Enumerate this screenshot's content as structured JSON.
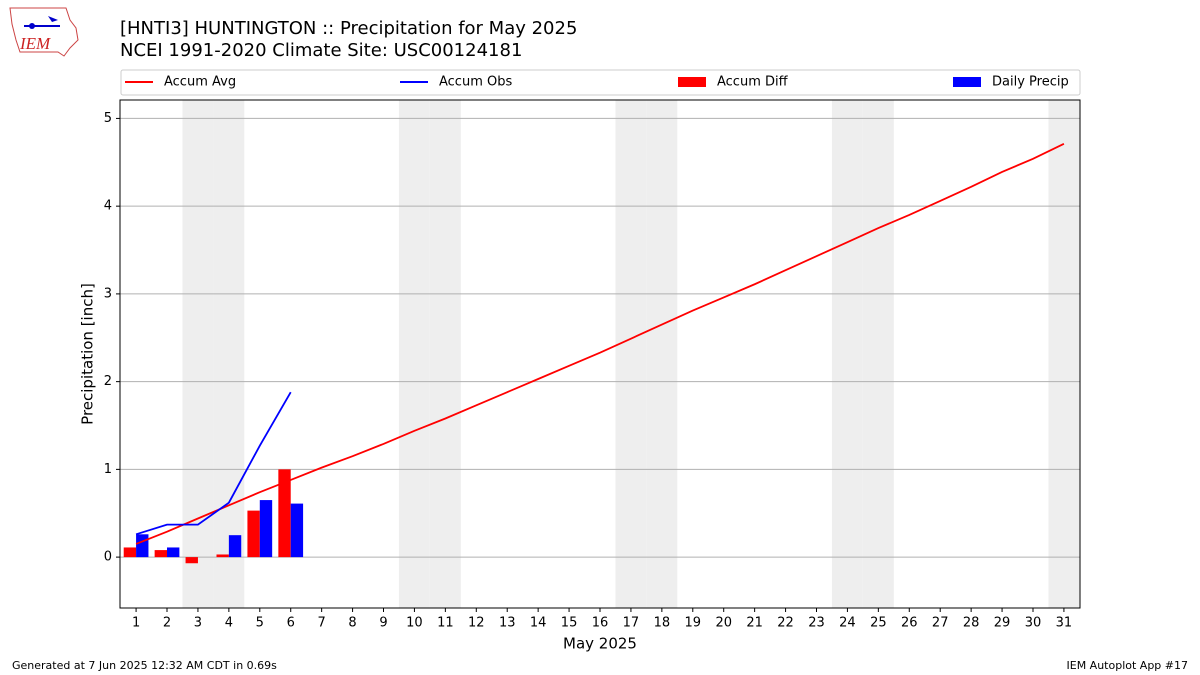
{
  "chart_data": {
    "type": "combo",
    "title": "[HNTI3] HUNTINGTON :: Precipitation for May 2025",
    "subtitle": "NCEI 1991-2020 Climate Site: USC00124181",
    "logo_text": "IEM",
    "x_label": "May 2025",
    "y_label": "Precipitation [inch]",
    "x": [
      1,
      2,
      3,
      4,
      5,
      6,
      7,
      8,
      9,
      10,
      11,
      12,
      13,
      14,
      15,
      16,
      17,
      18,
      19,
      20,
      21,
      22,
      23,
      24,
      25,
      26,
      27,
      28,
      29,
      30,
      31
    ],
    "xlim": [
      0.48,
      31.52
    ],
    "xticks": [
      1,
      2,
      3,
      4,
      5,
      6,
      7,
      8,
      9,
      10,
      11,
      12,
      13,
      14,
      15,
      16,
      17,
      18,
      19,
      20,
      21,
      22,
      23,
      24,
      25,
      26,
      27,
      28,
      29,
      30,
      31
    ],
    "ylim": [
      -0.58,
      5.21
    ],
    "yticks": [
      0,
      1,
      2,
      3,
      4,
      5
    ],
    "grid": true,
    "legend": "top",
    "highlight_days": [
      3,
      4,
      10,
      11,
      17,
      18,
      24,
      25,
      31
    ],
    "series": [
      {
        "name": "Accum Avg",
        "type": "line",
        "color": "#ff0000",
        "values": [
          0.15,
          0.29,
          0.44,
          0.59,
          0.74,
          0.88,
          1.02,
          1.15,
          1.29,
          1.44,
          1.58,
          1.73,
          1.88,
          2.03,
          2.18,
          2.33,
          2.49,
          2.65,
          2.81,
          2.96,
          3.11,
          3.27,
          3.43,
          3.59,
          3.75,
          3.9,
          4.06,
          4.22,
          4.39,
          4.54,
          4.71
        ]
      },
      {
        "name": "Accum Obs",
        "type": "line",
        "color": "#0000ff",
        "values": [
          0.26,
          0.37,
          0.37,
          0.62,
          1.27,
          1.88,
          null,
          null,
          null,
          null,
          null,
          null,
          null,
          null,
          null,
          null,
          null,
          null,
          null,
          null,
          null,
          null,
          null,
          null,
          null,
          null,
          null,
          null,
          null,
          null,
          null
        ]
      },
      {
        "name": "Accum Diff",
        "type": "bar",
        "color": "#ff0000",
        "values": [
          0.11,
          0.08,
          -0.07,
          0.03,
          0.53,
          1.0,
          null,
          null,
          null,
          null,
          null,
          null,
          null,
          null,
          null,
          null,
          null,
          null,
          null,
          null,
          null,
          null,
          null,
          null,
          null,
          null,
          null,
          null,
          null,
          null,
          null
        ]
      },
      {
        "name": "Daily Precip",
        "type": "bar",
        "color": "#0000ff",
        "values": [
          0.26,
          0.11,
          0,
          0.25,
          0.65,
          0.61,
          null,
          null,
          null,
          null,
          null,
          null,
          null,
          null,
          null,
          null,
          null,
          null,
          null,
          null,
          null,
          null,
          null,
          null,
          null,
          null,
          null,
          null,
          null,
          null,
          null
        ]
      }
    ],
    "footer_left": "Generated at 7 Jun 2025 12:32 AM CDT in 0.69s",
    "footer_right": "IEM Autoplot App #17"
  }
}
